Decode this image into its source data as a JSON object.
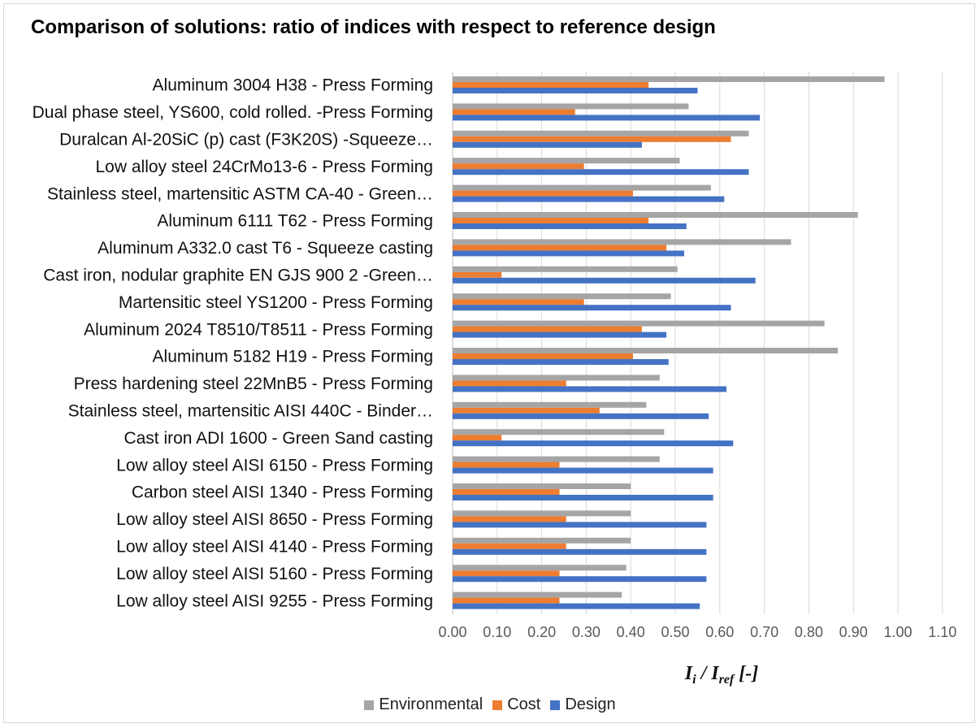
{
  "chart_data": {
    "type": "bar",
    "orientation": "horizontal",
    "title": "Comparison of solutions: ratio of indices with respect to reference design",
    "xlabel": "I_i / I_ref [-]",
    "xlabel_parts": {
      "main": "I",
      "sub1": "i",
      "mid": " / I",
      "sub2": "ref",
      "end": " [-]"
    },
    "xlim": [
      0,
      1.1
    ],
    "xticks": [
      "0.00",
      "0.10",
      "0.20",
      "0.30",
      "0.40",
      "0.50",
      "0.60",
      "0.70",
      "0.80",
      "0.90",
      "1.00",
      "1.10"
    ],
    "grid": true,
    "legend_position": "bottom",
    "categories": [
      "Aluminum 3004 H38 - Press Forming",
      "Dual phase steel, YS600, cold rolled. -Press Forming",
      "Duralcan Al-20SiC (p) cast (F3K20S) -Squeeze…",
      "Low alloy steel 24CrMo13-6 - Press Forming",
      "Stainless steel, martensitic ASTM CA-40 - Green…",
      "Aluminum 6111 T62 - Press Forming",
      "Aluminum A332.0 cast T6 - Squeeze casting",
      "Cast iron, nodular graphite EN GJS 900 2 -Green…",
      "Martensitic steel YS1200 - Press Forming",
      "Aluminum 2024 T8510/T8511 - Press Forming",
      "Aluminum 5182 H19 - Press Forming",
      "Press hardening steel 22MnB5 - Press Forming",
      "Stainless steel, martensitic AISI 440C - Binder…",
      "Cast iron ADI 1600 - Green Sand casting",
      "Low alloy steel AISI 6150 - Press Forming",
      "Carbon steel AISI 1340 - Press Forming",
      "Low alloy steel AISI 8650 - Press Forming",
      "Low alloy steel AISI 4140 - Press Forming",
      "Low alloy steel AISI 5160 - Press Forming",
      "Low alloy steel AISI 9255 - Press Forming"
    ],
    "series": [
      {
        "name": "Environmental",
        "color": "#a5a5a5",
        "values": [
          0.97,
          0.53,
          0.665,
          0.51,
          0.58,
          0.91,
          0.76,
          0.505,
          0.49,
          0.835,
          0.865,
          0.465,
          0.435,
          0.475,
          0.465,
          0.4,
          0.4,
          0.4,
          0.39,
          0.38
        ]
      },
      {
        "name": "Cost",
        "color": "#ed7d31",
        "values": [
          0.44,
          0.275,
          0.625,
          0.295,
          0.405,
          0.44,
          0.48,
          0.11,
          0.295,
          0.425,
          0.405,
          0.255,
          0.33,
          0.11,
          0.24,
          0.24,
          0.255,
          0.255,
          0.24,
          0.24
        ]
      },
      {
        "name": "Design",
        "color": "#4472c4",
        "values": [
          0.55,
          0.69,
          0.425,
          0.665,
          0.61,
          0.525,
          0.52,
          0.68,
          0.625,
          0.48,
          0.485,
          0.615,
          0.575,
          0.63,
          0.585,
          0.585,
          0.57,
          0.57,
          0.57,
          0.555
        ]
      }
    ]
  }
}
